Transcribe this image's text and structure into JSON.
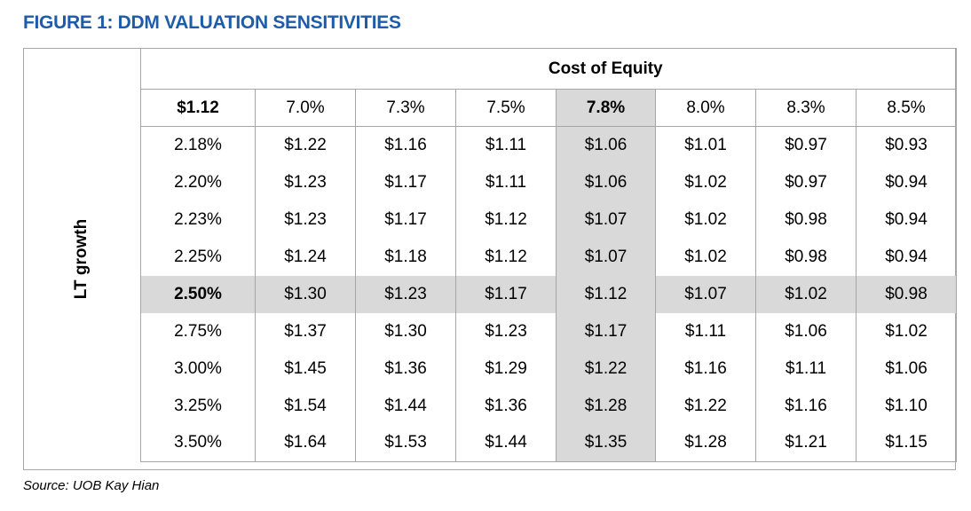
{
  "figure_title": "FIGURE 1: DDM VALUATION SENSITIVITIES",
  "column_group_label": "Cost of Equity",
  "row_group_label": "LT growth",
  "corner_value": "$1.12",
  "columns": [
    "7.0%",
    "7.3%",
    "7.5%",
    "7.8%",
    "8.0%",
    "8.3%",
    "8.5%"
  ],
  "rows": [
    {
      "label": "2.18%",
      "values": [
        "$1.22",
        "$1.16",
        "$1.11",
        "$1.06",
        "$1.01",
        "$0.97",
        "$0.93"
      ]
    },
    {
      "label": "2.20%",
      "values": [
        "$1.23",
        "$1.17",
        "$1.11",
        "$1.06",
        "$1.02",
        "$0.97",
        "$0.94"
      ]
    },
    {
      "label": "2.23%",
      "values": [
        "$1.23",
        "$1.17",
        "$1.12",
        "$1.07",
        "$1.02",
        "$0.98",
        "$0.94"
      ]
    },
    {
      "label": "2.25%",
      "values": [
        "$1.24",
        "$1.18",
        "$1.12",
        "$1.07",
        "$1.02",
        "$0.98",
        "$0.94"
      ]
    },
    {
      "label": "2.50%",
      "values": [
        "$1.30",
        "$1.23",
        "$1.17",
        "$1.12",
        "$1.07",
        "$1.02",
        "$0.98"
      ]
    },
    {
      "label": "2.75%",
      "values": [
        "$1.37",
        "$1.30",
        "$1.23",
        "$1.17",
        "$1.11",
        "$1.06",
        "$1.02"
      ]
    },
    {
      "label": "3.00%",
      "values": [
        "$1.45",
        "$1.36",
        "$1.29",
        "$1.22",
        "$1.16",
        "$1.11",
        "$1.06"
      ]
    },
    {
      "label": "3.25%",
      "values": [
        "$1.54",
        "$1.44",
        "$1.36",
        "$1.28",
        "$1.22",
        "$1.16",
        "$1.10"
      ]
    },
    {
      "label": "3.50%",
      "values": [
        "$1.64",
        "$1.53",
        "$1.44",
        "$1.35",
        "$1.28",
        "$1.21",
        "$1.15"
      ]
    }
  ],
  "highlight": {
    "column_index": 3,
    "row_index": 4,
    "color": "#d9d9d9"
  },
  "title_color": "#1f5ca8",
  "source": "Source: UOB Kay Hian"
}
